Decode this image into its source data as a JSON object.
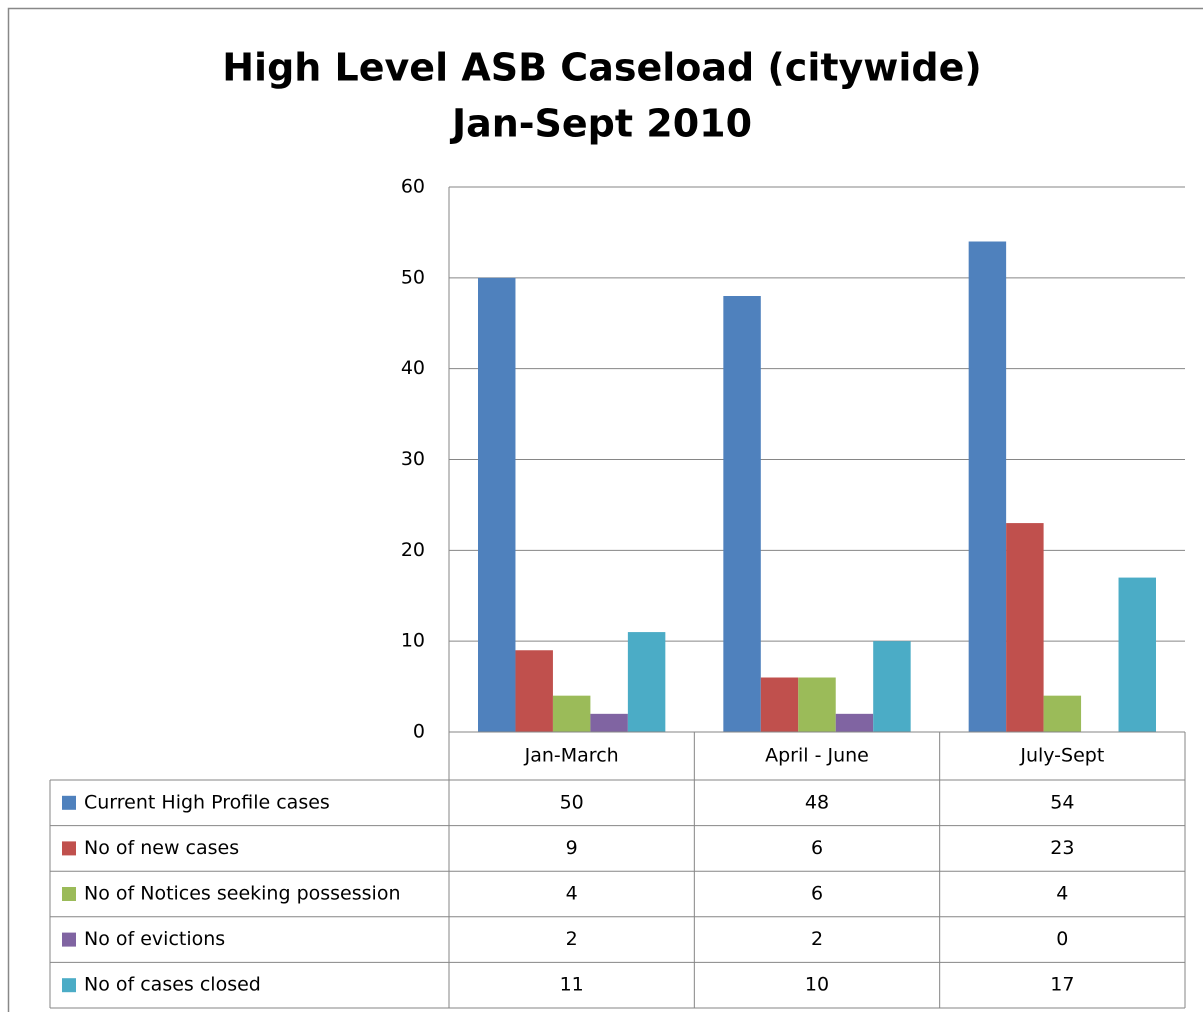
{
  "chart_data": {
    "type": "bar",
    "title": "High Level ASB Caseload (citywide)",
    "subtitle": "Jan-Sept 2010",
    "categories": [
      "Jan-March",
      "April - June",
      "July-Sept"
    ],
    "series": [
      {
        "name": "Current High Profile cases",
        "color": "#4F81BD",
        "values": [
          50,
          48,
          54
        ]
      },
      {
        "name": "No of new cases",
        "color": "#C0504D",
        "values": [
          9,
          6,
          23
        ]
      },
      {
        "name": "No of Notices seeking possession",
        "color": "#9BBB59",
        "values": [
          4,
          6,
          4
        ]
      },
      {
        "name": "No of evictions",
        "color": "#8064A2",
        "values": [
          2,
          2,
          0
        ]
      },
      {
        "name": "No of cases closed",
        "color": "#4BACC6",
        "values": [
          11,
          10,
          17
        ]
      }
    ],
    "ylim": [
      0,
      60
    ],
    "yticks": [
      0,
      10,
      20,
      30,
      40,
      50,
      60
    ],
    "grid": true
  }
}
